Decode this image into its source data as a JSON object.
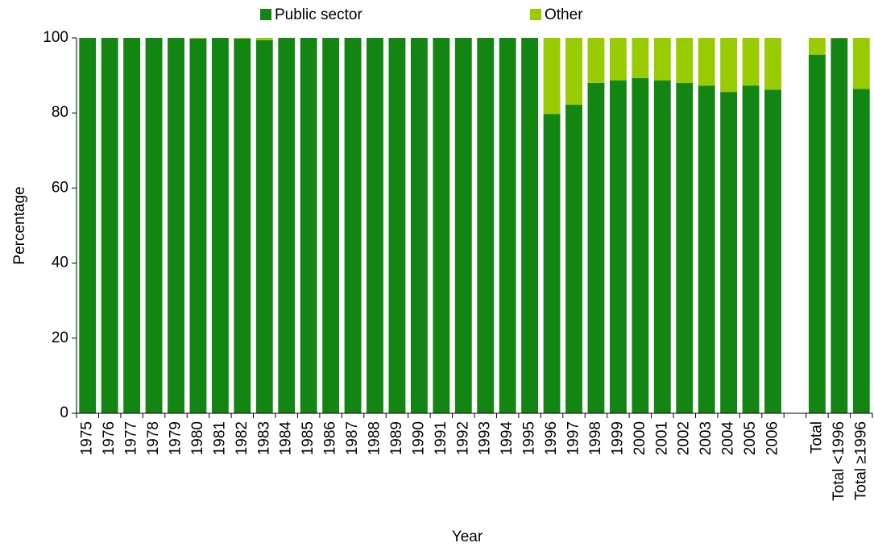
{
  "chart_data": {
    "type": "stacked_bar",
    "x_label": "Year",
    "y_label": "Percentage",
    "categories": [
      "1975",
      "1976",
      "1977",
      "1978",
      "1979",
      "1980",
      "1981",
      "1982",
      "1983",
      "1984",
      "1985",
      "1986",
      "1987",
      "1988",
      "1989",
      "1990",
      "1991",
      "1992",
      "1993",
      "1994",
      "1995",
      "1996",
      "1997",
      "1998",
      "1999",
      "2000",
      "2001",
      "2002",
      "2003",
      "2004",
      "2005",
      "2006",
      null,
      "Total",
      "Total <1996",
      "Total ≥1996"
    ],
    "series": [
      {
        "name": "Public sector",
        "color": "#138513",
        "values": [
          100,
          100,
          100,
          100,
          100,
          99.8,
          100,
          99.8,
          99.4,
          100,
          100,
          100,
          100,
          100,
          100,
          100,
          100,
          100,
          100,
          100,
          100,
          79.7,
          82.2,
          88,
          88.7,
          89.3,
          88.7,
          88,
          87.3,
          85.6,
          87.3,
          86.2,
          null,
          95.5,
          99.9,
          86.4
        ]
      },
      {
        "name": "Other",
        "color": "#99cc00",
        "values": [
          0,
          0,
          0,
          0,
          0,
          0.2,
          0,
          0.2,
          0.6,
          0,
          0,
          0,
          0,
          0,
          0,
          0,
          0,
          0,
          0,
          0,
          0,
          20.3,
          17.8,
          12,
          11.3,
          10.7,
          11.3,
          12,
          12.7,
          14.4,
          12.7,
          13.8,
          null,
          4.5,
          0.1,
          13.6
        ]
      }
    ],
    "ylim": [
      0,
      100
    ],
    "yticks": [
      0,
      20,
      40,
      60,
      80,
      100
    ],
    "grid": false,
    "legend": "top"
  }
}
